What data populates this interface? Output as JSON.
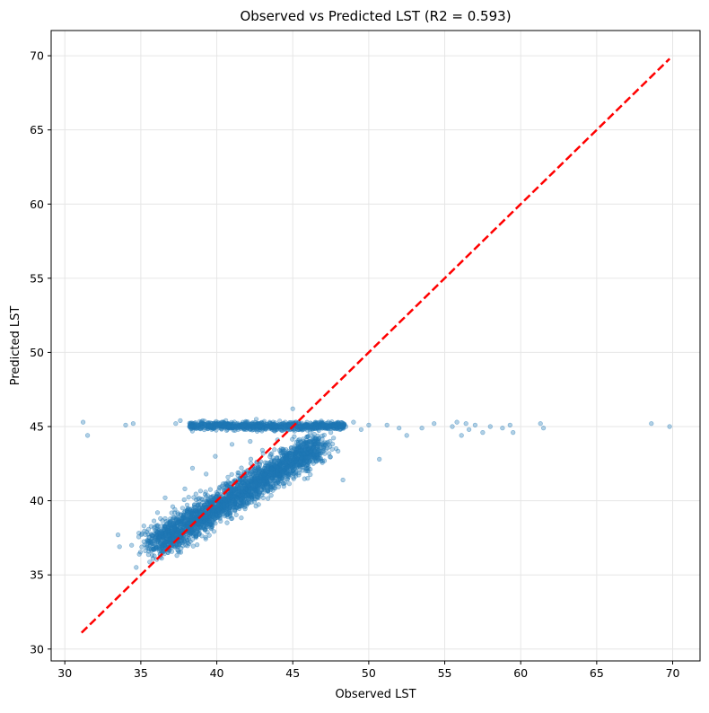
{
  "chart_data": {
    "type": "scatter",
    "title": "Observed vs Predicted LST (R2 = 0.593)",
    "xlabel": "Observed LST",
    "ylabel": "Predicted LST",
    "xlim": [
      29.1,
      71.8
    ],
    "ylim": [
      29.2,
      71.7
    ],
    "x_ticks": [
      30,
      35,
      40,
      45,
      50,
      55,
      60,
      65,
      70
    ],
    "y_ticks": [
      30,
      35,
      40,
      45,
      50,
      55,
      60,
      65,
      70
    ],
    "grid": true,
    "point_color": "#1f77b4",
    "reference_line": {
      "style": "dashed",
      "color": "#ff0000",
      "x": [
        31.1,
        69.8
      ],
      "y": [
        31.1,
        69.8
      ]
    },
    "series": [
      {
        "values": [
          [
            31.2,
            45.3
          ],
          [
            31.5,
            44.4
          ],
          [
            33.5,
            37.7
          ],
          [
            33.6,
            36.9
          ],
          [
            34.0,
            45.1
          ],
          [
            34.5,
            45.2
          ],
          [
            34.4,
            37.0
          ],
          [
            34.7,
            35.5
          ],
          [
            34.9,
            36.4
          ],
          [
            35.2,
            38.3
          ],
          [
            35.5,
            37.3
          ],
          [
            35.8,
            36.1
          ],
          [
            36.1,
            39.2
          ],
          [
            36.4,
            37.8
          ],
          [
            36.6,
            40.2
          ],
          [
            36.9,
            38.6
          ],
          [
            37.1,
            39.6
          ],
          [
            37.3,
            45.2
          ],
          [
            37.6,
            45.4
          ],
          [
            37.9,
            40.8
          ],
          [
            38.2,
            45.0
          ],
          [
            38.4,
            42.2
          ],
          [
            38.6,
            45.1
          ],
          [
            39.0,
            45.3
          ],
          [
            39.3,
            41.8
          ],
          [
            39.6,
            45.0
          ],
          [
            39.9,
            43.0
          ],
          [
            40.2,
            45.2
          ],
          [
            40.6,
            45.4
          ],
          [
            41.0,
            43.8
          ],
          [
            41.4,
            44.8
          ],
          [
            41.8,
            45.1
          ],
          [
            42.2,
            44.0
          ],
          [
            42.6,
            45.5
          ],
          [
            43.0,
            43.4
          ],
          [
            43.5,
            45.2
          ],
          [
            44.0,
            44.1
          ],
          [
            44.5,
            45.3
          ],
          [
            45.0,
            46.2
          ],
          [
            45.5,
            45.0
          ],
          [
            46.0,
            44.9
          ],
          [
            46.5,
            45.3
          ],
          [
            47.0,
            45.1
          ],
          [
            47.5,
            44.6
          ],
          [
            48.0,
            45.2
          ],
          [
            48.3,
            41.4
          ],
          [
            48.5,
            45.0
          ],
          [
            49.0,
            45.3
          ],
          [
            49.5,
            44.8
          ],
          [
            50.0,
            45.1
          ],
          [
            50.7,
            42.8
          ],
          [
            51.2,
            45.1
          ],
          [
            52.0,
            44.9
          ],
          [
            52.5,
            44.4
          ],
          [
            53.5,
            44.9
          ],
          [
            54.3,
            45.2
          ],
          [
            55.5,
            45.0
          ],
          [
            55.8,
            45.3
          ],
          [
            56.1,
            44.4
          ],
          [
            56.4,
            45.2
          ],
          [
            56.6,
            44.8
          ],
          [
            57.0,
            45.1
          ],
          [
            57.5,
            44.6
          ],
          [
            58.0,
            45.0
          ],
          [
            58.8,
            44.9
          ],
          [
            59.3,
            45.1
          ],
          [
            59.5,
            44.6
          ],
          [
            61.3,
            45.2
          ],
          [
            61.5,
            44.9
          ],
          [
            68.6,
            45.2
          ],
          [
            69.8,
            45.0
          ]
        ]
      }
    ]
  }
}
